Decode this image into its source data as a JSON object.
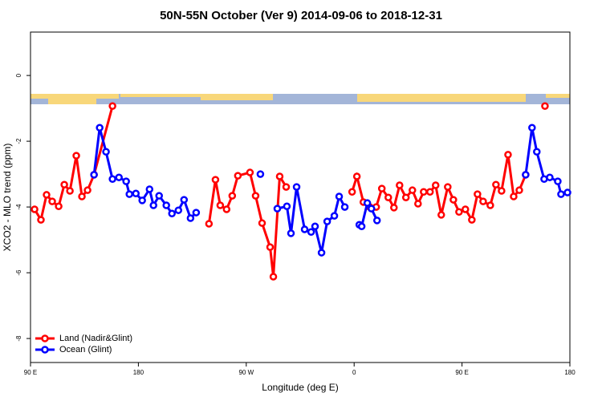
{
  "chart_data": {
    "type": "line",
    "title": "50N-55N October (Ver 9)   2014-09-06 to 2018-12-31",
    "xlabel": "Longitude (deg E)",
    "ylabel": "XCO2 - MLO trend (ppm)",
    "xlim": [
      90,
      540
    ],
    "ylim": [
      -8.73,
      1.32
    ],
    "xticks": [
      {
        "value": 90,
        "label": "90 E"
      },
      180,
      {
        "value": 270,
        "label": "90 W"
      },
      {
        "value": 360,
        "label": "0"
      },
      {
        "value": 450,
        "label": "90 E"
      },
      {
        "value": 540,
        "label": "180"
      }
    ],
    "yticks": [
      0,
      -2,
      -4,
      -6,
      -8
    ],
    "legend": "bottomleft",
    "series": [
      {
        "name": "Land (Nadir&Glint)",
        "color": "#ff0000",
        "x": [
          93.4,
          98.7,
          103.4,
          108.1,
          113.5,
          118.2,
          122.9,
          128.2,
          132.9,
          137.6,
          143.0,
          158.4,
          null,
          238.9,
          244.3,
          248.3,
          253.6,
          258.3,
          263.0,
          273.1,
          277.8,
          283.2,
          289.9,
          292.6,
          297.9,
          303.3,
          null,
          358.3,
          362.3,
          367.7,
          373.0,
          378.4,
          383.1,
          388.5,
          393.2,
          397.9,
          403.2,
          408.6,
          413.3,
          418.0,
          423.3,
          428.0,
          432.7,
          438.1,
          442.8,
          447.5,
          452.8,
          458.2,
          462.9,
          467.6,
          473.6,
          478.3,
          483.0,
          488.4,
          493.1,
          497.8,
          503.1,
          null,
          519.2
        ],
        "values": [
          -4.07,
          -4.39,
          -3.63,
          -3.83,
          -3.98,
          -3.32,
          -3.51,
          -2.44,
          -3.68,
          -3.49,
          -3.02,
          -0.93,
          null,
          -4.51,
          -3.17,
          -3.95,
          -4.07,
          -3.66,
          -3.05,
          -2.95,
          -3.66,
          -4.49,
          -5.22,
          -6.12,
          -3.07,
          -3.39,
          null,
          -3.54,
          -3.07,
          -3.85,
          -4.0,
          -4.0,
          -3.44,
          -3.71,
          -4.02,
          -3.34,
          -3.71,
          -3.49,
          -3.9,
          -3.54,
          -3.54,
          -3.34,
          -4.24,
          -3.39,
          -3.78,
          -4.15,
          -4.07,
          -4.39,
          -3.61,
          -3.83,
          -3.95,
          -3.32,
          -3.51,
          -2.41,
          -3.68,
          -3.49,
          -3.02,
          null,
          -0.93
        ]
      },
      {
        "name": "Ocean (Glint)",
        "color": "#0000ff",
        "x": [
          143.0,
          147.7,
          153.0,
          158.4,
          163.8,
          169.8,
          172.5,
          177.9,
          183.2,
          189.3,
          192.6,
          197.3,
          203.3,
          208.0,
          213.4,
          218.1,
          223.5,
          228.2,
          null,
          281.8,
          null,
          295.9,
          303.9,
          307.3,
          312.0,
          318.7,
          324.1,
          327.4,
          332.8,
          337.5,
          343.5,
          347.5,
          352.2,
          null,
          364.3,
          366.3,
          371.0,
          374.4,
          379.1,
          null,
          503.1,
          508.4,
          512.4,
          518.5,
          523.2,
          529.9,
          532.6,
          538.0
        ],
        "values": [
          -3.02,
          -1.59,
          -2.32,
          -3.15,
          -3.1,
          -3.22,
          -3.61,
          -3.59,
          -3.8,
          -3.46,
          -3.95,
          -3.66,
          -3.95,
          -4.2,
          -4.1,
          -3.78,
          -4.34,
          -4.17,
          null,
          -3.0,
          null,
          -4.05,
          -3.98,
          -4.8,
          -3.39,
          -4.68,
          -4.76,
          -4.59,
          -5.39,
          -4.44,
          -4.27,
          -3.68,
          -4.0,
          null,
          -4.54,
          -4.59,
          -3.88,
          -4.05,
          -4.41,
          null,
          -3.02,
          -1.59,
          -2.32,
          -3.15,
          -3.1,
          -3.22,
          -3.61,
          -3.56
        ]
      }
    ]
  }
}
